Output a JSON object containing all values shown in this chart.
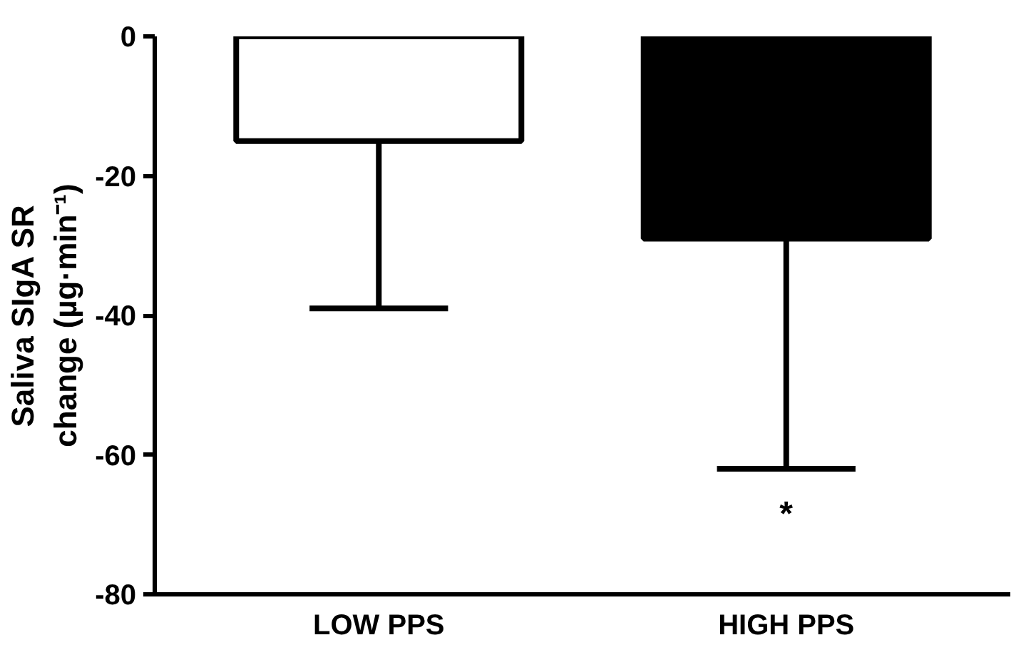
{
  "chart_data": {
    "type": "bar",
    "ylabel": "Saliva SIgA SR\nchange (µg·min⁻¹)",
    "categories": [
      "LOW PPS",
      "HIGH PPS"
    ],
    "values": [
      -15,
      -29
    ],
    "colors": [
      "#ffffff",
      "#000000"
    ],
    "errors": [
      [
        -39,
        -15
      ],
      [
        -62,
        -29
      ]
    ],
    "ylim": [
      -80,
      0
    ],
    "yticks": [
      0,
      -20,
      -40,
      -60,
      -80
    ],
    "grid": false,
    "annotations": [
      "*"
    ]
  }
}
